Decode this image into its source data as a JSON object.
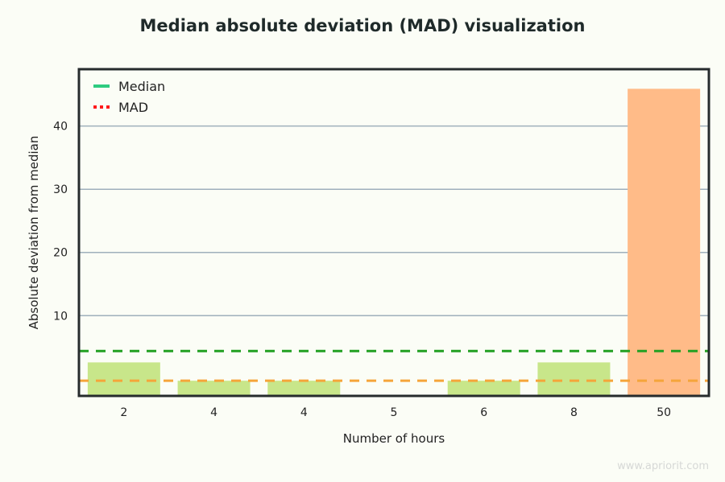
{
  "chart_data": {
    "type": "bar",
    "title": "Median absolute deviation (MAD) visualization",
    "xlabel": "Number of hours",
    "ylabel": "Absolute deviation from median",
    "categories": [
      "2",
      "4",
      "4",
      "5",
      "6",
      "8",
      "50"
    ],
    "values": [
      2.6,
      -0.3,
      -0.3,
      -2.7,
      -0.3,
      2.6,
      45.9
    ],
    "bar_colors": [
      "#c8e68a",
      "#c8e68a",
      "#c8e68a",
      "#c8e68a",
      "#c8e68a",
      "#c8e68a",
      "#ffbb88"
    ],
    "ylim": [
      -2.7,
      49
    ],
    "yticks": [
      10,
      20,
      30,
      40
    ],
    "grid": "horizontal",
    "reference_lines": [
      {
        "name": "Median",
        "value": 4.4,
        "color": "#22a022",
        "style": "dashed",
        "legend_color": "#2ecc80",
        "legend_style": "solid"
      },
      {
        "name": "MAD",
        "value": -0.3,
        "color": "#f5a53a",
        "style": "dashed",
        "legend_color": "#ff1a1a",
        "legend_style": "dotted"
      }
    ],
    "legend_placement": "top-left"
  },
  "watermark": "www.apriorit.com"
}
